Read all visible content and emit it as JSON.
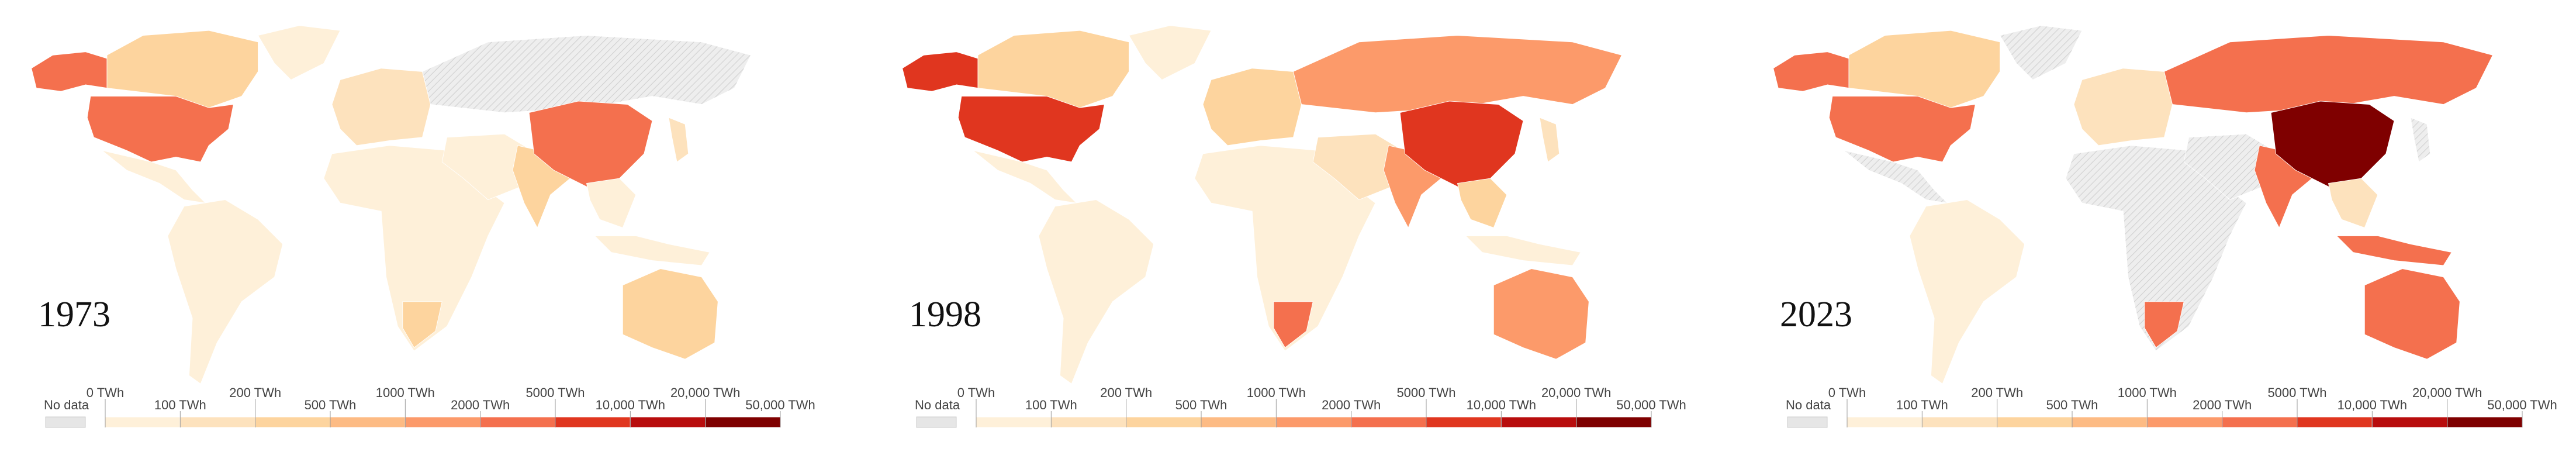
{
  "panels": [
    "1973",
    "1998",
    "2023"
  ],
  "legend": {
    "no_data": "No data",
    "thresholds": [
      "0 TWh",
      "100 TWh",
      "200 TWh",
      "500 TWh",
      "1000 TWh",
      "2000 TWh",
      "5000 TWh",
      "10,000 TWh",
      "20,000 TWh",
      "50,000 TWh"
    ],
    "colors": [
      "#fef0d9",
      "#fde2bd",
      "#fdd49e",
      "#fdbb84",
      "#fc9a6a",
      "#f4704e",
      "#e0361f",
      "#b80d0d",
      "#7f0000"
    ],
    "no_data_color": "#e6e6e6"
  }
}
